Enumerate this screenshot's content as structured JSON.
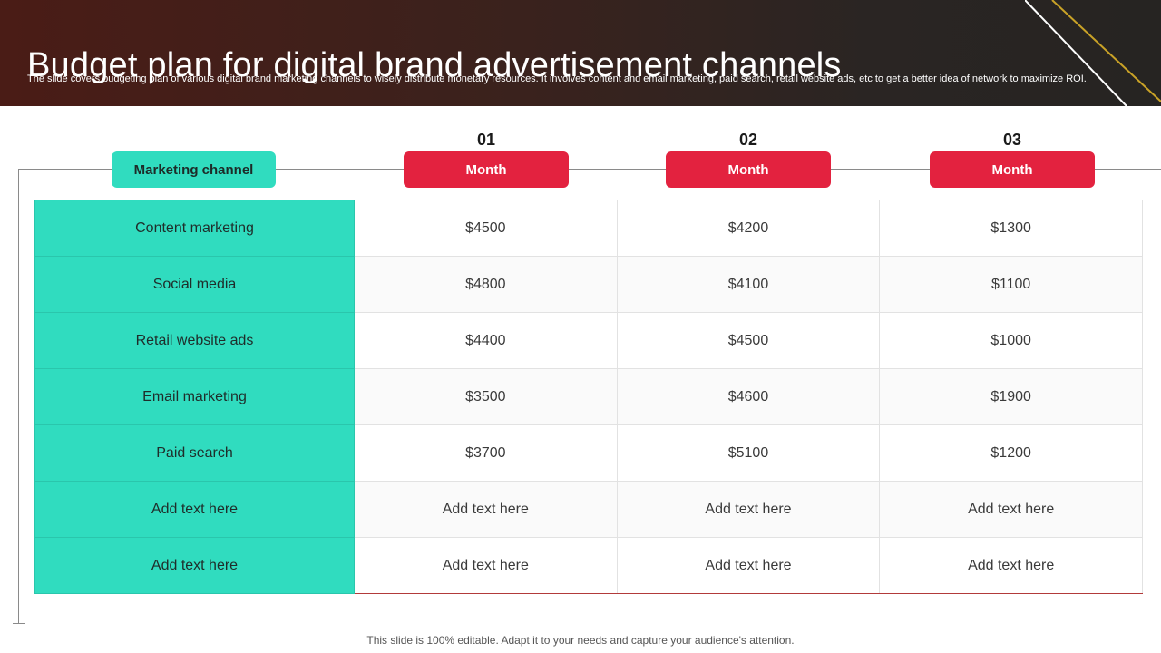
{
  "header": {
    "title": "Budget plan for digital brand advertisement channels",
    "subtitle": "The slide covers budgeting plan of various digital brand marketing channels to wisely distribute monetary resources. It involves content and email marketing, paid search, retail website ads, etc to get a better idea of network to maximize ROI."
  },
  "columns": {
    "channel_label": "Marketing channel",
    "months": [
      {
        "num": "01",
        "label": "Month"
      },
      {
        "num": "02",
        "label": "Month"
      },
      {
        "num": "03",
        "label": "Month"
      }
    ]
  },
  "rows": [
    {
      "channel": "Content marketing",
      "values": [
        "$4500",
        "$4200",
        "$1300"
      ]
    },
    {
      "channel": "Social media",
      "values": [
        "$4800",
        "$4100",
        "$1100"
      ]
    },
    {
      "channel": "Retail website ads",
      "values": [
        "$4400",
        "$4500",
        "$1000"
      ]
    },
    {
      "channel": "Email marketing",
      "values": [
        "$3500",
        "$4600",
        "$1900"
      ]
    },
    {
      "channel": "Paid search",
      "values": [
        "$3700",
        "$5100",
        "$1200"
      ]
    },
    {
      "channel": "Add text here",
      "values": [
        "Add text here",
        "Add text here",
        "Add text here"
      ]
    },
    {
      "channel": "Add text here",
      "values": [
        "Add text here",
        "Add text here",
        "Add text here"
      ]
    }
  ],
  "footer": "This slide is 100% editable. Adapt it to your needs and capture your audience's attention.",
  "colors": {
    "header_bg": "#3a221d",
    "teal": "#30dcbf",
    "red": "#e3223f",
    "gold_line": "#c9a227"
  }
}
